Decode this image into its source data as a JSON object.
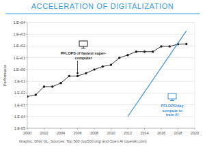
{
  "chart_data": {
    "type": "line",
    "title": "ACCELERATION OF DIGITALIZATION",
    "y_label": "Performance",
    "log": "y",
    "grid": true,
    "marker": "circle",
    "xlim": [
      2000,
      2020
    ],
    "xticks": [
      2000,
      2002,
      2004,
      2006,
      2008,
      2010,
      2012,
      2014,
      2016,
      2018,
      2020
    ],
    "ylim": [
      1e-05,
      10000
    ],
    "yticks": [
      {
        "value": 1e-05,
        "label": "1.E-05"
      },
      {
        "value": 0.0001,
        "label": "1.E-04"
      },
      {
        "value": 0.001,
        "label": "1.E-03"
      },
      {
        "value": 0.01,
        "label": "1.E-02"
      },
      {
        "value": 0.1,
        "label": "1.E-01"
      },
      {
        "value": 1,
        "label": "1.E+00"
      },
      {
        "value": 10,
        "label": "1.E+01"
      },
      {
        "value": 100,
        "label": "1.E+02"
      },
      {
        "value": 1000,
        "label": "1.E+03"
      },
      {
        "value": 10000,
        "label": "1.E+04"
      }
    ],
    "series": [
      {
        "name": "PFLOPS of fastest super-computer",
        "color": "#1a1a1a",
        "marker": "circle",
        "x": [
          2000,
          2001,
          2002,
          2003,
          2004,
          2005,
          2006,
          2007,
          2008,
          2009,
          2010,
          2011,
          2012,
          2013,
          2014,
          2015,
          2016,
          2017,
          2018,
          2019
        ],
        "values": [
          0.005,
          0.007,
          0.035,
          0.035,
          0.07,
          0.28,
          0.28,
          0.48,
          1.0,
          1.8,
          2.5,
          10,
          17,
          33,
          33,
          33,
          93,
          93,
          143,
          148
        ]
      },
      {
        "name": "PFLOPS/day compute to train AI",
        "color": "#3a8fd6",
        "marker": "none",
        "x": [
          2012,
          2019
        ],
        "values": [
          0.0001,
          2000
        ]
      }
    ],
    "annotations": [
      {
        "text": [
          "PFLOPS of fastest super-",
          "computer"
        ],
        "series": 0,
        "point": 6
      },
      {
        "text": [
          "PFLOPS/day",
          "compute to",
          "train AI"
        ],
        "series": 1
      }
    ],
    "footer": "Graphic: DNV GL. Sources: Top 500 (top500.org) and Open AI (openAI.com)"
  }
}
